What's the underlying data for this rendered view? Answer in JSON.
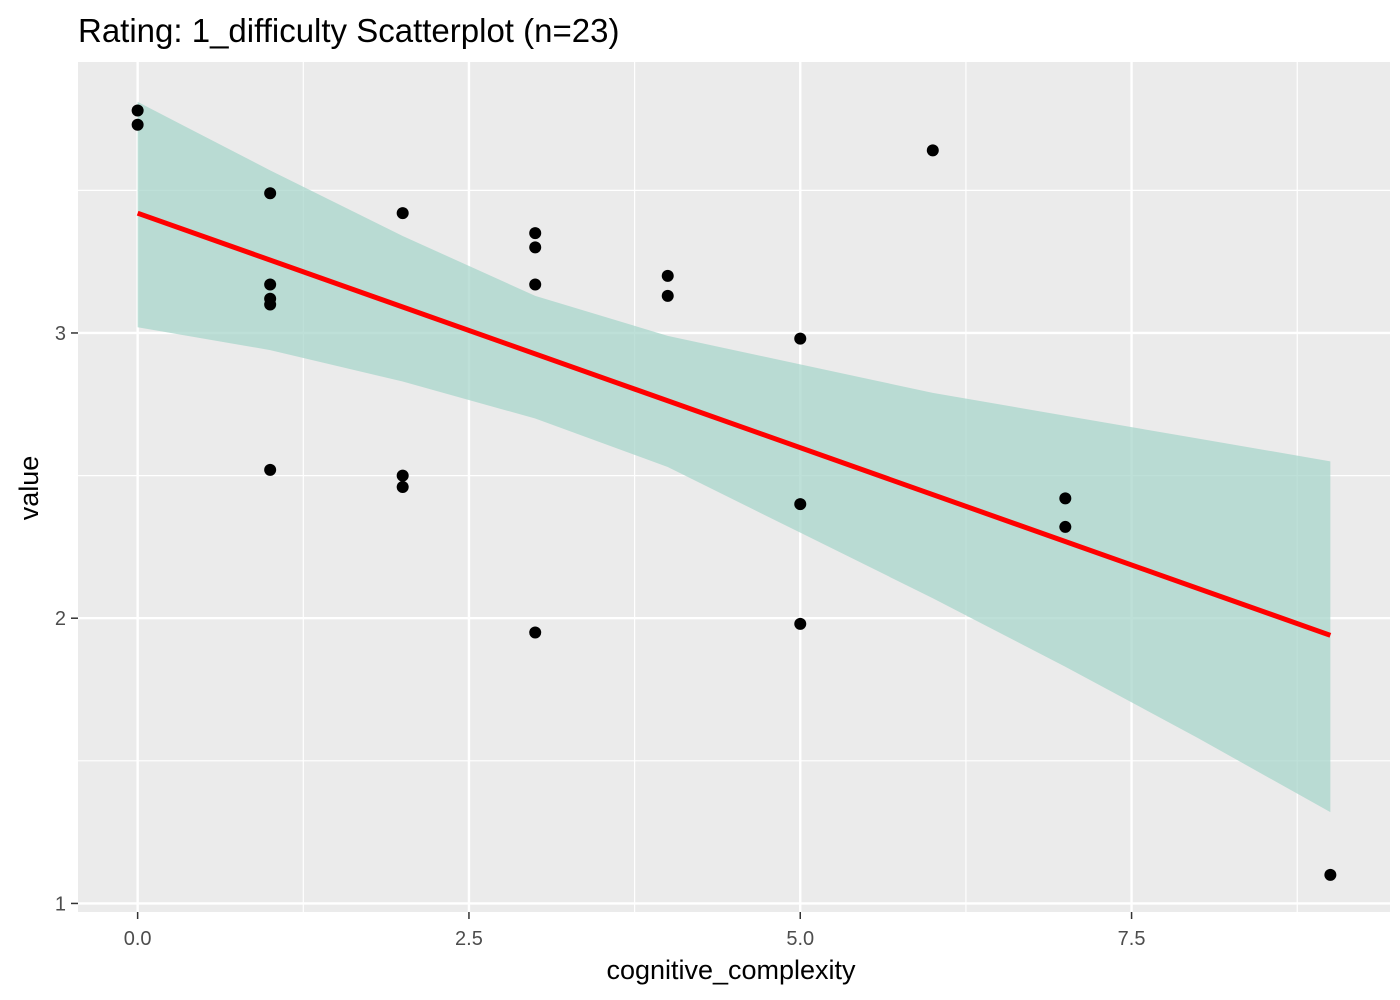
{
  "chart_data": {
    "type": "scatter",
    "title": "Rating: 1_difficulty Scatterplot (n=23)",
    "xlabel": "cognitive_complexity",
    "ylabel": "value",
    "xlim": [
      -0.45,
      9.45
    ],
    "ylim": [
      0.97,
      3.95
    ],
    "x_ticks": [
      0.0,
      2.5,
      5.0,
      7.5
    ],
    "x_tick_labels": [
      "0.0",
      "2.5",
      "5.0",
      "7.5"
    ],
    "y_ticks": [
      1,
      2,
      3
    ],
    "y_tick_labels": [
      "1",
      "2",
      "3"
    ],
    "grid": true,
    "points": [
      {
        "x": 0,
        "y": 3.78
      },
      {
        "x": 0,
        "y": 3.73
      },
      {
        "x": 1,
        "y": 3.49
      },
      {
        "x": 1,
        "y": 3.17
      },
      {
        "x": 1,
        "y": 3.12
      },
      {
        "x": 1,
        "y": 3.1
      },
      {
        "x": 1,
        "y": 2.52
      },
      {
        "x": 2,
        "y": 3.42
      },
      {
        "x": 2,
        "y": 2.5
      },
      {
        "x": 2,
        "y": 2.46
      },
      {
        "x": 3,
        "y": 3.35
      },
      {
        "x": 3,
        "y": 3.3
      },
      {
        "x": 3,
        "y": 3.17
      },
      {
        "x": 3,
        "y": 1.95
      },
      {
        "x": 4,
        "y": 3.2
      },
      {
        "x": 4,
        "y": 3.13
      },
      {
        "x": 5,
        "y": 2.98
      },
      {
        "x": 5,
        "y": 2.4
      },
      {
        "x": 5,
        "y": 1.98
      },
      {
        "x": 6,
        "y": 3.64
      },
      {
        "x": 7,
        "y": 2.42
      },
      {
        "x": 7,
        "y": 2.32
      },
      {
        "x": 9,
        "y": 1.1
      }
    ],
    "regression_line": {
      "x": [
        0,
        9
      ],
      "y": [
        3.42,
        1.94
      ]
    },
    "confidence_band": {
      "x": [
        0,
        1,
        2,
        3,
        4,
        5,
        6,
        7,
        8,
        9
      ],
      "lower": [
        3.02,
        2.94,
        2.83,
        2.7,
        2.53,
        2.3,
        2.07,
        1.83,
        1.58,
        1.32
      ],
      "upper": [
        3.81,
        3.57,
        3.34,
        3.13,
        2.99,
        2.89,
        2.79,
        2.71,
        2.63,
        2.55
      ]
    },
    "colors": {
      "panel": "#ebebeb",
      "grid": "#ffffff",
      "points": "#000000",
      "line": "#ff0000",
      "band": "#a8d5cb"
    }
  }
}
